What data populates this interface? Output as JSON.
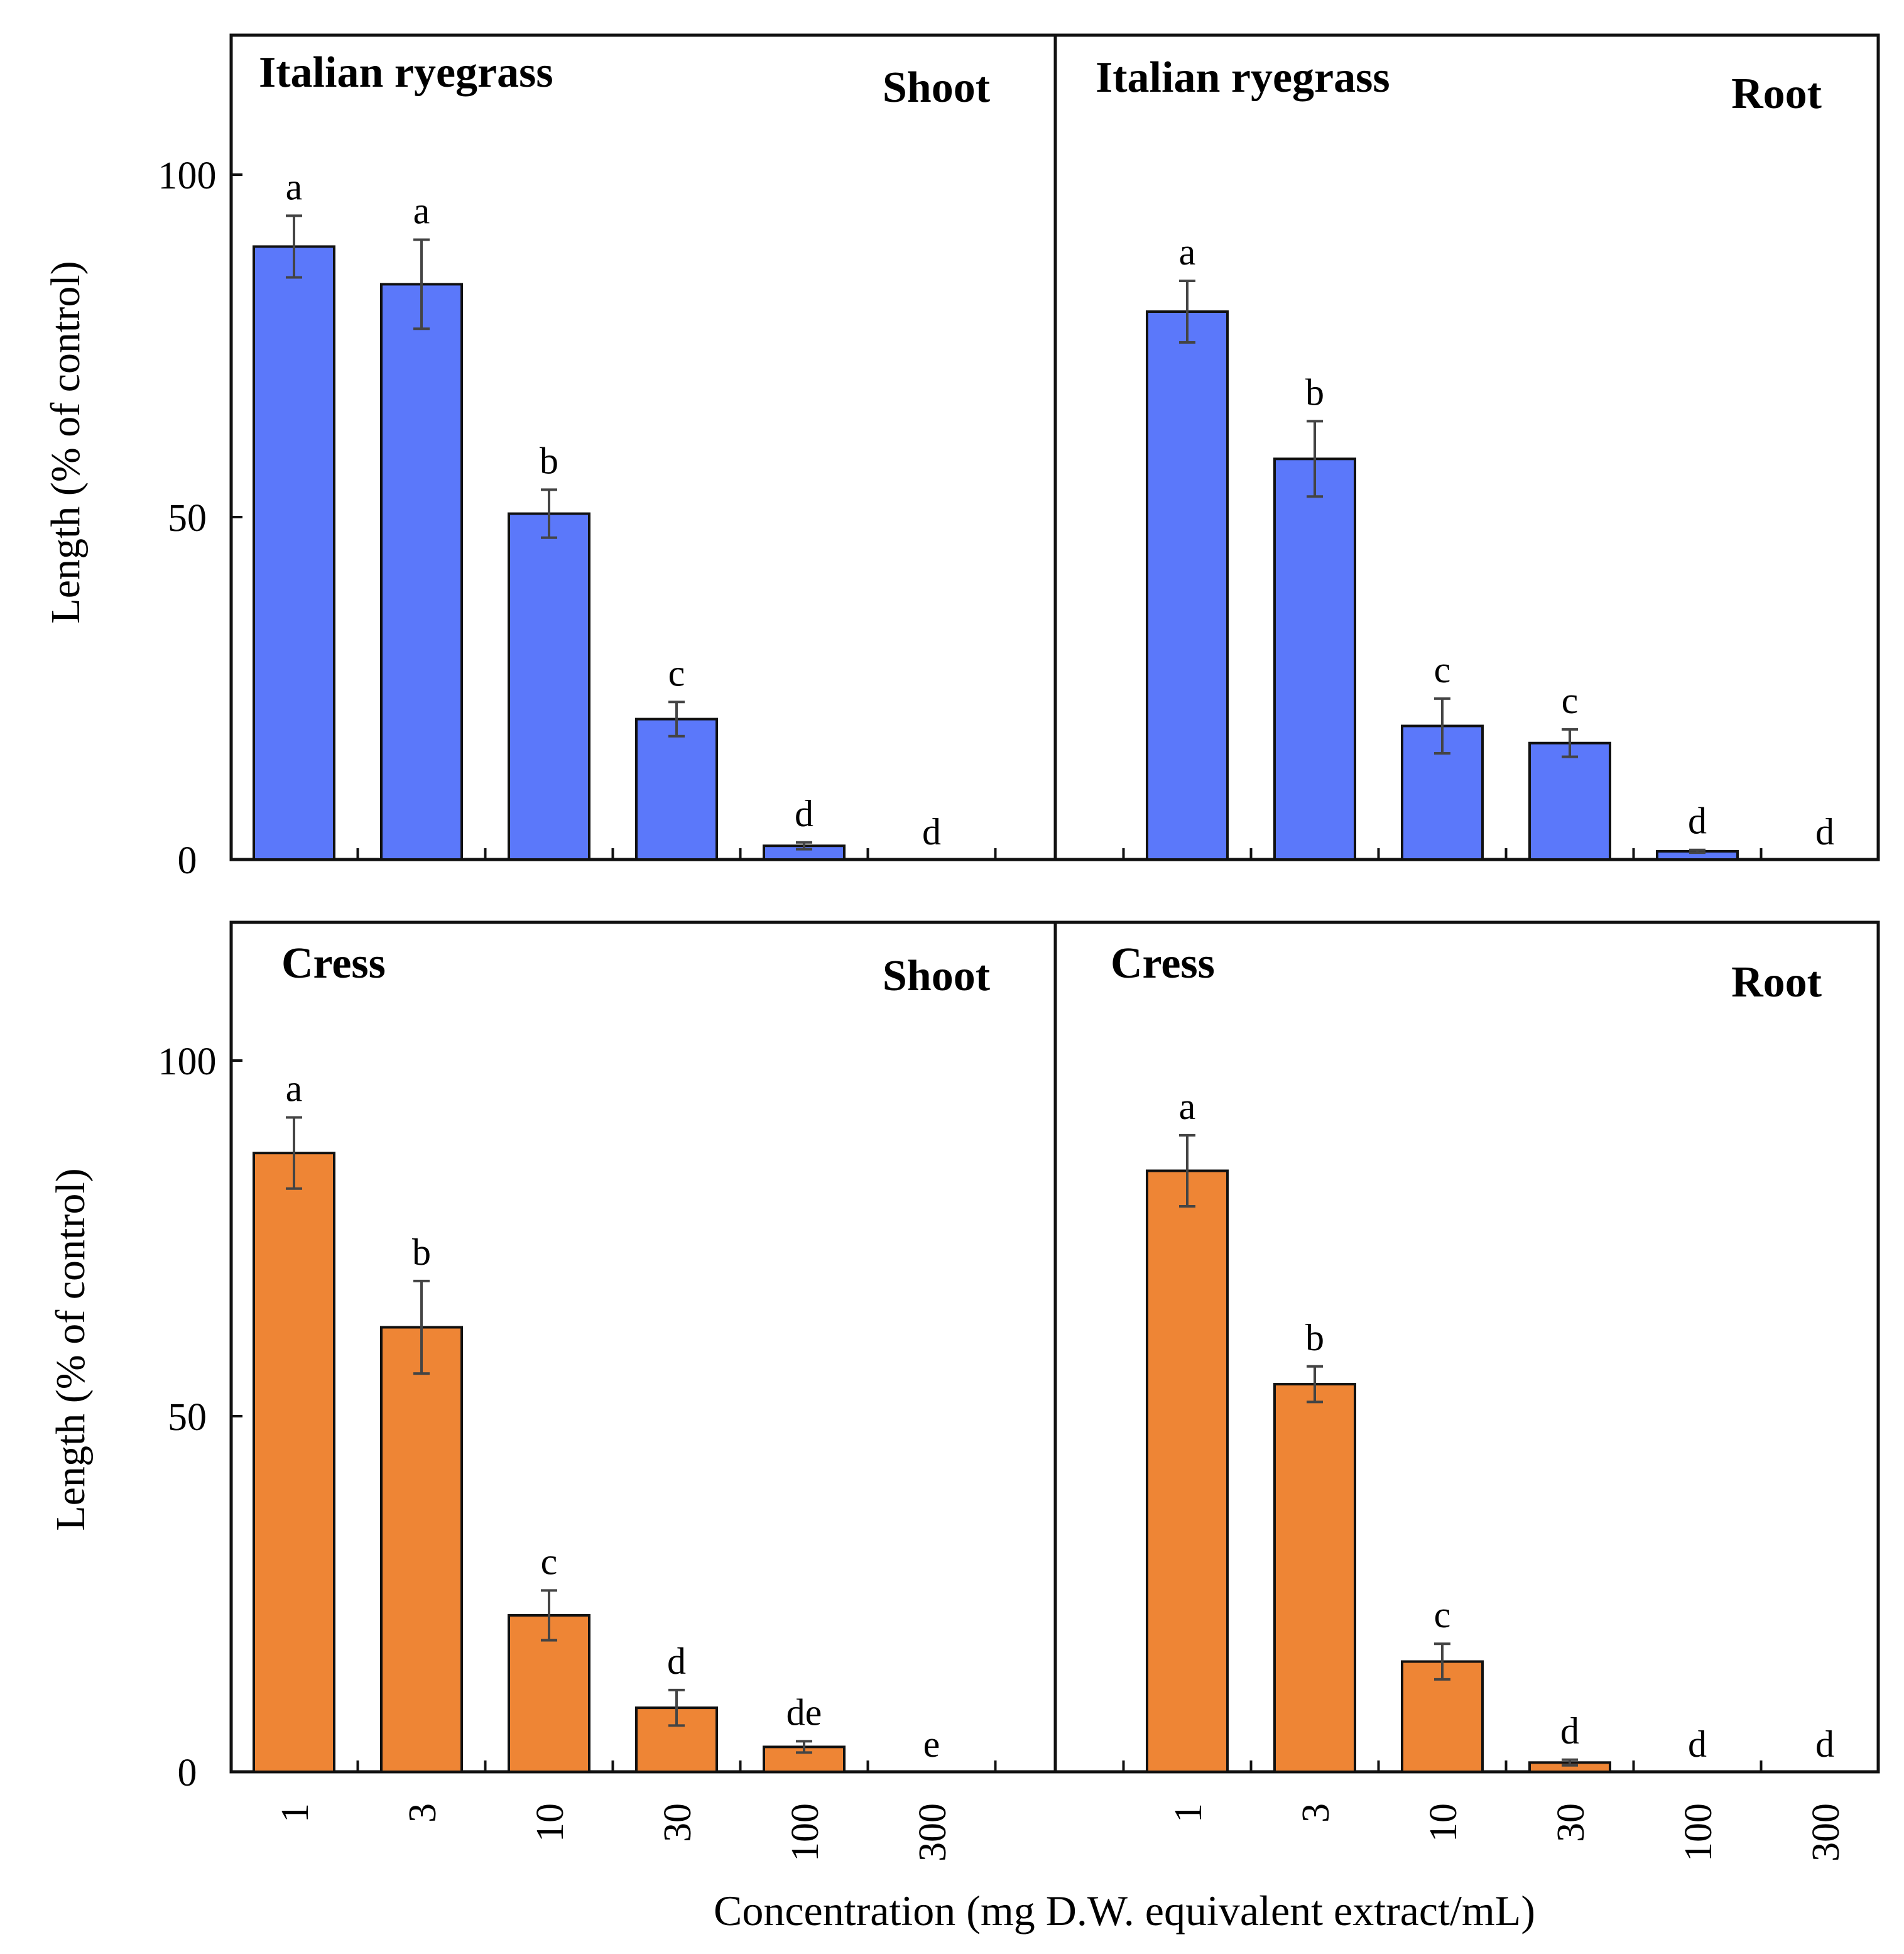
{
  "y_axis_label": "Length (% of control)",
  "x_axis_label": "Concentration (mg D.W. equivalent extract/mL)",
  "colors": {
    "blue": "#5b78fa",
    "orange": "#ee8535",
    "frame": "#111111",
    "error": "#444444"
  },
  "chart_data": [
    {
      "type": "bar",
      "species": "Italian ryegrass",
      "organ": "Shoot",
      "categories": [
        "1",
        "3",
        "10",
        "30",
        "100",
        "300"
      ],
      "values": [
        89.5,
        84,
        50.5,
        20.5,
        2,
        0
      ],
      "errors": [
        4.5,
        6.5,
        3.5,
        2.5,
        0.5,
        0
      ],
      "letters": [
        "a",
        "a",
        "b",
        "c",
        "d",
        "d"
      ],
      "ylabel": "Length (% of control)",
      "ylim": [
        0,
        120
      ],
      "yticks": [
        0,
        50,
        100
      ],
      "color": "blue"
    },
    {
      "type": "bar",
      "species": "Italian ryegrass",
      "organ": "Root",
      "categories": [
        "1",
        "3",
        "10",
        "30",
        "100",
        "300"
      ],
      "values": [
        80,
        58.5,
        19.5,
        17,
        1.2,
        0
      ],
      "errors": [
        4.5,
        5.5,
        4,
        2,
        0.2,
        0
      ],
      "letters": [
        "a",
        "b",
        "c",
        "c",
        "d",
        "d"
      ],
      "ylim": [
        0,
        120
      ],
      "color": "blue"
    },
    {
      "type": "bar",
      "species": "Cress",
      "organ": "Shoot",
      "categories": [
        "1",
        "3",
        "10",
        "30",
        "100",
        "300"
      ],
      "values": [
        87,
        62.5,
        22,
        9,
        3.5,
        0
      ],
      "errors": [
        5,
        6.5,
        3.5,
        2.5,
        0.8,
        0
      ],
      "letters": [
        "a",
        "b",
        "c",
        "d",
        "de",
        "e"
      ],
      "ylabel": "Length (% of control)",
      "xlabel": "Concentration (mg D.W. equivalent extract/mL)",
      "ylim": [
        0,
        120
      ],
      "yticks": [
        0,
        50,
        100
      ],
      "color": "orange"
    },
    {
      "type": "bar",
      "species": "Cress",
      "organ": "Root",
      "categories": [
        "1",
        "3",
        "10",
        "30",
        "100",
        "300"
      ],
      "values": [
        84.5,
        54.5,
        15.5,
        1.3,
        0,
        0
      ],
      "errors": [
        5,
        2.5,
        2.5,
        0.4,
        0,
        0
      ],
      "letters": [
        "a",
        "b",
        "c",
        "d",
        "d",
        "d"
      ],
      "xlabel": "Concentration (mg D.W. equivalent extract/mL)",
      "ylim": [
        0,
        120
      ],
      "color": "orange"
    }
  ]
}
